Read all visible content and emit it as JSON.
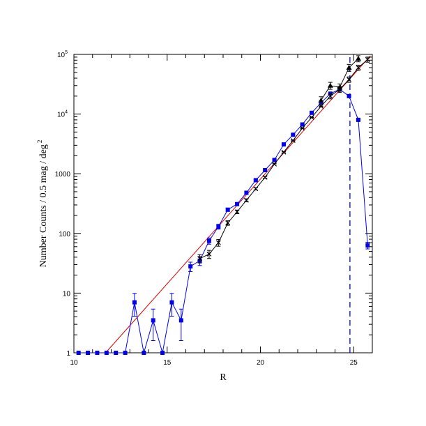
{
  "chart_data": {
    "type": "scatter",
    "title": "",
    "xlabel": "R",
    "ylabel": "Number Counts / 0.5 mag / deg",
    "ylabel_exponent": "2",
    "xlim": [
      10,
      26
    ],
    "ylim": [
      1,
      100000
    ],
    "y_scale": "log",
    "grid": false,
    "legend": "none",
    "x_ticks": [
      {
        "value": 10,
        "label": "10"
      },
      {
        "value": 15,
        "label": "15"
      },
      {
        "value": 20,
        "label": "20"
      },
      {
        "value": 25,
        "label": "25"
      }
    ],
    "y_ticks": [
      {
        "value": 1,
        "label": "1",
        "exp": ""
      },
      {
        "value": 10,
        "label": "10",
        "exp": ""
      },
      {
        "value": 100,
        "label": "100",
        "exp": ""
      },
      {
        "value": 1000,
        "label": "1000",
        "exp": ""
      },
      {
        "value": 10000,
        "label": "10",
        "exp": "4"
      },
      {
        "value": 100000,
        "label": "10",
        "exp": "5"
      }
    ],
    "series": [
      {
        "color": "#0000ee",
        "marker": "square",
        "x": [
          10.25,
          10.75,
          11.25,
          11.75,
          12.25,
          12.75,
          13.25,
          13.75,
          14.25,
          14.75,
          15.25,
          15.75,
          16.25,
          16.75,
          17.25,
          17.75,
          18.25,
          18.75,
          19.25,
          19.75,
          20.25,
          20.75,
          21.25,
          21.75,
          22.25,
          22.75,
          23.25,
          23.75,
          24.25,
          24.75,
          25.25,
          25.75
        ],
        "y": [
          1,
          1,
          1,
          1,
          1,
          1,
          7,
          1,
          3.5,
          1,
          7,
          3.5,
          28,
          35,
          75,
          130,
          250,
          310,
          480,
          780,
          1150,
          1700,
          3100,
          4500,
          6700,
          10500,
          15500,
          22000,
          26000,
          20000,
          8000,
          63
        ],
        "err": [
          0,
          0,
          0,
          0,
          0,
          0,
          2.9,
          0,
          1.9,
          0,
          2.9,
          1.9,
          5,
          6,
          9,
          12,
          16,
          18,
          22,
          28,
          34,
          41,
          56,
          67,
          82,
          102,
          125,
          150,
          160,
          140,
          90,
          8
        ]
      },
      {
        "color": "#000000",
        "marker": "cross",
        "x": [
          16.75,
          17.25,
          17.75,
          18.25,
          18.75,
          19.25,
          19.75,
          20.25,
          20.75,
          21.25,
          21.75,
          22.25,
          22.75,
          23.25,
          23.75,
          24.25,
          24.75,
          25.25,
          25.75
        ],
        "y": [
          38,
          45,
          70,
          150,
          230,
          360,
          560,
          870,
          1450,
          2300,
          3600,
          5800,
          8800,
          13500,
          20000,
          26000,
          38000,
          60000,
          82000
        ],
        "err": [
          6,
          7,
          9,
          13,
          16,
          20,
          25,
          31,
          40,
          50,
          62,
          80,
          98,
          120,
          2000,
          3000,
          4000,
          6000,
          8000
        ]
      },
      {
        "color": "#000000",
        "marker": "triangle",
        "x": [
          23.25,
          23.75,
          24.25,
          24.75,
          25.25
        ],
        "y": [
          17000,
          30000,
          28000,
          60000,
          85000
        ],
        "err": [
          2500,
          4000,
          4000,
          8000,
          10000
        ]
      }
    ],
    "fit_line": {
      "color": "#dd0000",
      "x": [
        11.7,
        25.9
      ],
      "y": [
        1,
        95000
      ]
    },
    "cutoff_line": {
      "color": "#0000ee",
      "style": "dashed",
      "x": 24.8
    }
  }
}
